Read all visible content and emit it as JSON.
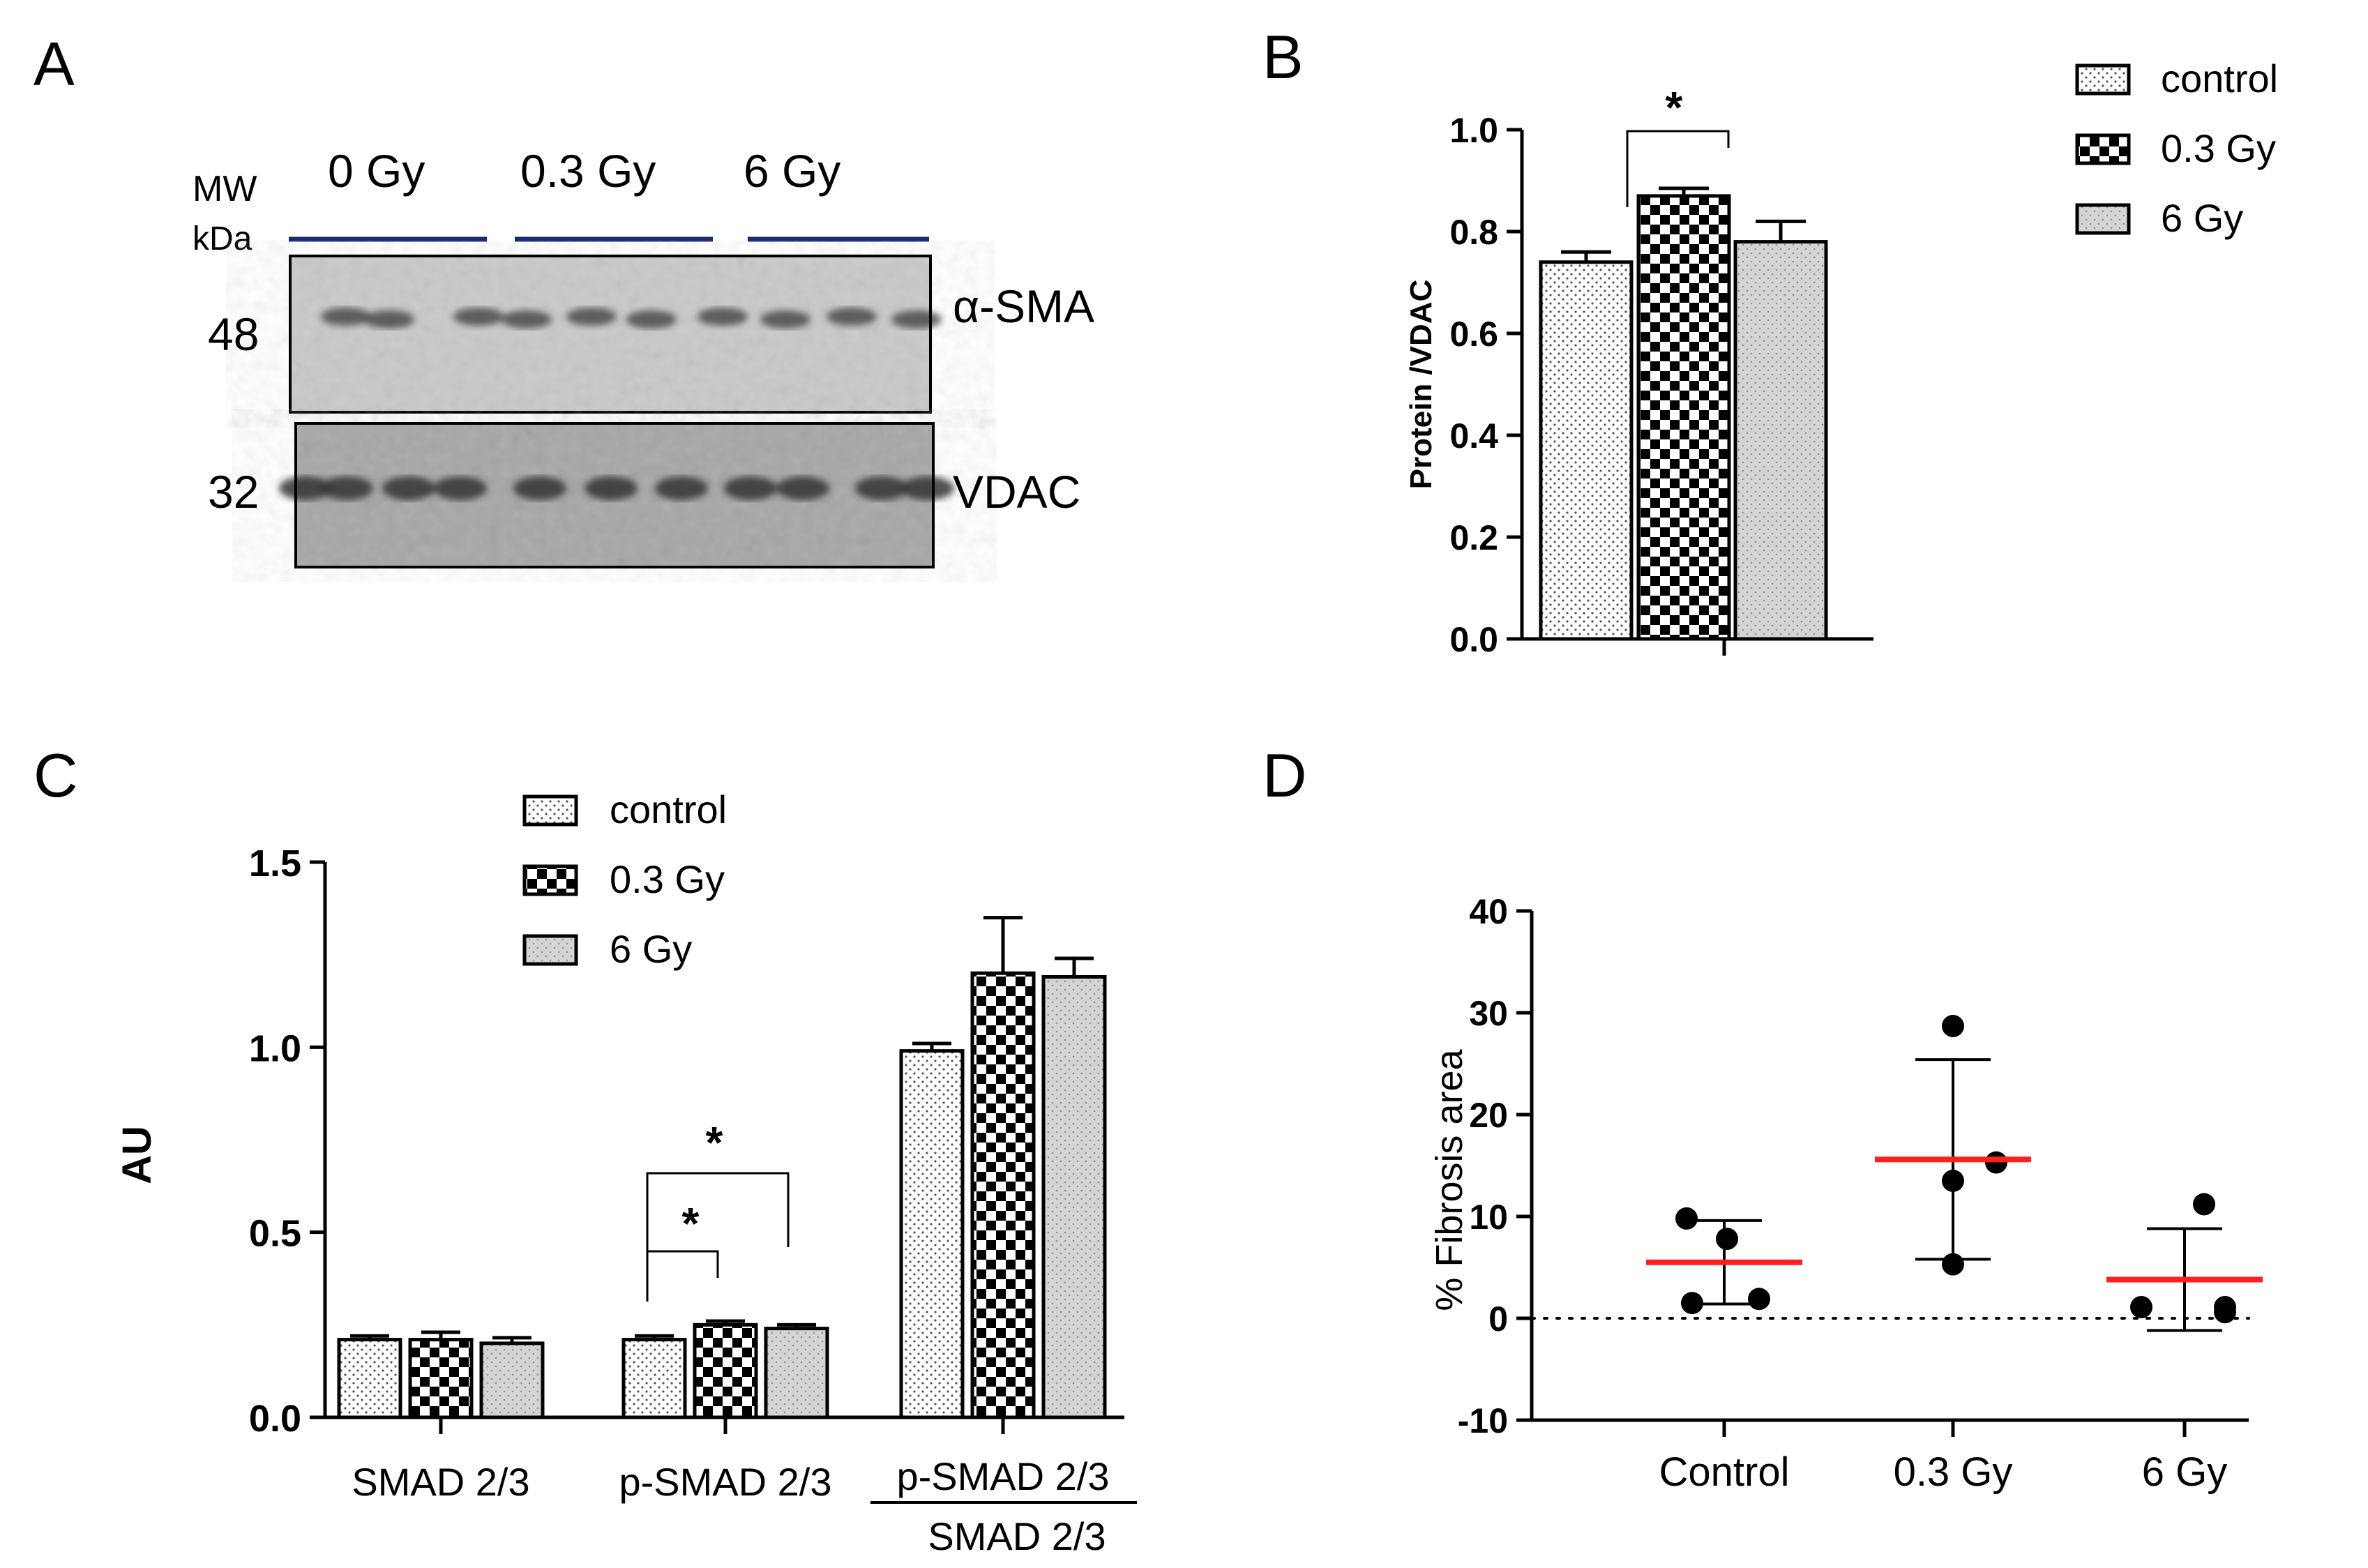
{
  "panel_labels": {
    "a": "A",
    "b": "B",
    "c": "C",
    "d": "D"
  },
  "blot": {
    "mw_label": "MW",
    "kda_label": "kDa",
    "groups": [
      "0 Gy",
      "0.3 Gy",
      "6 Gy"
    ],
    "top": {
      "mw": "48",
      "protein": "α-SMA"
    },
    "bottom": {
      "mw": "32",
      "protein": "VDAC"
    }
  },
  "legend": {
    "items": [
      "control",
      "0.3 Gy",
      "6 Gy"
    ]
  },
  "chart_data": [
    {
      "id": "B",
      "type": "bar",
      "ylabel": "Protein /VDAC",
      "ylim": [
        0,
        1.0
      ],
      "yticks": [
        "0.0",
        "0.2",
        "0.4",
        "0.6",
        "0.8",
        "1.0"
      ],
      "series": [
        {
          "name": "control",
          "value": 0.74,
          "error": 0.02,
          "pattern": "dots"
        },
        {
          "name": "0.3 Gy",
          "value": 0.87,
          "error": 0.015,
          "pattern": "checker"
        },
        {
          "name": "6 Gy",
          "value": 0.78,
          "error": 0.04,
          "pattern": "gray"
        }
      ],
      "significance": [
        {
          "from": "control",
          "to": "0.3 Gy",
          "label": "*"
        }
      ]
    },
    {
      "id": "C",
      "type": "bar",
      "ylabel": "AU",
      "ylim": [
        0,
        1.5
      ],
      "yticks": [
        "0.0",
        "0.5",
        "1.0",
        "1.5"
      ],
      "categories": [
        "SMAD 2/3",
        "p-SMAD 2/3",
        "p-SMAD 2/3 / SMAD 2/3"
      ],
      "category_labels": {
        "smad": "SMAD 2/3",
        "psmad": "p-SMAD 2/3",
        "ratio_numerator": "p-SMAD 2/3",
        "ratio_denominator": "SMAD 2/3"
      },
      "series": [
        {
          "name": "control",
          "values": [
            0.21,
            0.21,
            0.99
          ],
          "errors": [
            0.01,
            0.01,
            0.02
          ]
        },
        {
          "name": "0.3 Gy",
          "values": [
            0.21,
            0.25,
            1.2
          ],
          "errors": [
            0.02,
            0.01,
            0.15
          ]
        },
        {
          "name": "6 Gy",
          "values": [
            0.2,
            0.24,
            1.19
          ],
          "errors": [
            0.015,
            0.01,
            0.05
          ]
        }
      ],
      "significance": [
        {
          "category": "p-SMAD 2/3",
          "from": "control",
          "to": "0.3 Gy",
          "label": "*"
        },
        {
          "category": "p-SMAD 2/3",
          "from": "control",
          "to": "6 Gy",
          "label": "*"
        }
      ]
    },
    {
      "id": "D",
      "type": "scatter",
      "ylabel": "% Fibrosis area",
      "ylim": [
        -10,
        40
      ],
      "yticks": [
        "-10",
        "0",
        "10",
        "20",
        "30",
        "40"
      ],
      "categories": [
        "Control",
        "0.3 Gy",
        "6 Gy"
      ],
      "points": [
        [
          9.8,
          7.8,
          1.9,
          1.5
        ],
        [
          28.7,
          15.3,
          13.5,
          5.3
        ],
        [
          11.2,
          1.1,
          0.6,
          1.1
        ]
      ],
      "means": [
        5.5,
        15.6,
        3.8
      ],
      "sd": [
        4.1,
        9.8,
        5.0
      ],
      "mean_color": "#ff1f1f",
      "reference_line": 0
    }
  ]
}
